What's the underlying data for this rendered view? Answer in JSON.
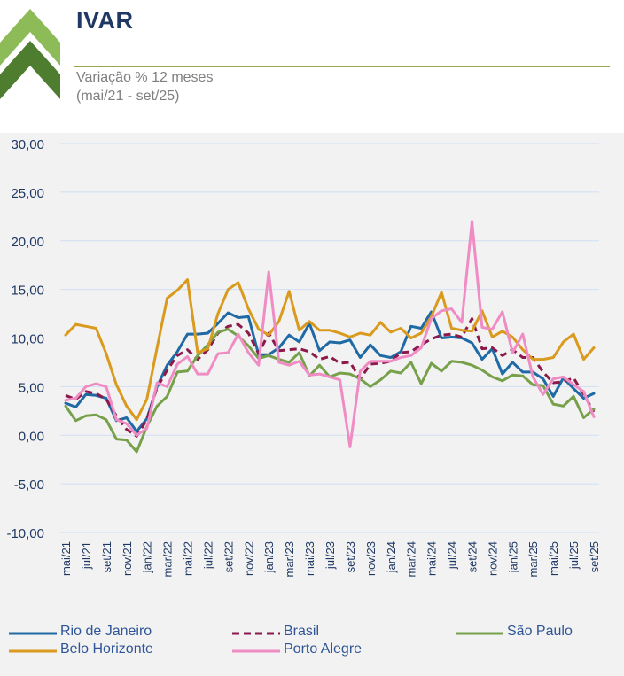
{
  "header": {
    "title": "IVAR",
    "subtitle_line1": "Variação % 12 meses",
    "subtitle_line2": "(mai/21 - set/25)"
  },
  "colors": {
    "rio": "#1f6aa5",
    "brasil": "#8b1a4a",
    "sao_paulo": "#77a04a",
    "belo_horizonte": "#d99a1e",
    "porto_alegre": "#f08cc4",
    "grid": "#cfe0f4",
    "logo_dark": "#4e7d30",
    "logo_light": "#8cbb57"
  },
  "chart_data": {
    "type": "line",
    "title": "IVAR",
    "subtitle": "Variação % 12 meses (mai/21 - set/25)",
    "ylim": [
      -10,
      30
    ],
    "yticks": [
      -10,
      -5,
      0,
      5,
      10,
      15,
      20,
      25,
      30
    ],
    "ytick_labels": [
      "-10,00",
      "-5,00",
      "0,00",
      "5,00",
      "10,00",
      "15,00",
      "20,00",
      "25,00",
      "30,00"
    ],
    "categories": [
      "mai/21",
      "jun/21",
      "jul/21",
      "ago/21",
      "set/21",
      "out/21",
      "nov/21",
      "dez/21",
      "jan/22",
      "fev/22",
      "mar/22",
      "abr/22",
      "mai/22",
      "jun/22",
      "jul/22",
      "ago/22",
      "set/22",
      "out/22",
      "nov/22",
      "dez/22",
      "jan/23",
      "fev/23",
      "mar/23",
      "abr/23",
      "mai/23",
      "jun/23",
      "jul/23",
      "ago/23",
      "set/23",
      "out/23",
      "nov/23",
      "dez/23",
      "jan/24",
      "fev/24",
      "mar/24",
      "abr/24",
      "mai/24",
      "jun/24",
      "jul/24",
      "ago/24",
      "set/24",
      "out/24",
      "nov/24",
      "dez/24",
      "jan/25",
      "fev/25",
      "mar/25",
      "abr/25",
      "mai/25",
      "jun/25",
      "jul/25",
      "ago/25",
      "set/25"
    ],
    "x_tick_labels": [
      "mai/21",
      "jul/21",
      "set/21",
      "nov/21",
      "jan/22",
      "mar/22",
      "mai/22",
      "jul/22",
      "set/22",
      "nov/22",
      "jan/23",
      "mar/23",
      "mai/23",
      "jul/23",
      "set/23",
      "nov/23",
      "jan/24",
      "mar/24",
      "mai/24",
      "jul/24",
      "set/24",
      "nov/24",
      "jan/25",
      "mar/25",
      "mai/25",
      "jul/25",
      "set/25"
    ],
    "series": [
      {
        "key": "rio",
        "name": "Rio de Janeiro",
        "dash": "solid",
        "values": [
          3.3,
          2.9,
          4.2,
          4.1,
          3.8,
          1.5,
          1.8,
          0.4,
          1.7,
          5.0,
          7.2,
          8.6,
          10.4,
          10.4,
          10.5,
          11.5,
          12.6,
          12.1,
          12.2,
          8.3,
          8.3,
          9.0,
          10.3,
          9.6,
          11.5,
          8.7,
          9.6,
          9.5,
          9.8,
          8.0,
          9.3,
          8.2,
          8.0,
          8.6,
          11.2,
          11.0,
          12.7,
          10.0,
          10.1,
          10.0,
          9.5,
          7.8,
          8.9,
          6.3,
          7.5,
          6.5,
          6.5,
          5.8,
          4.0,
          5.9,
          4.8,
          3.8,
          4.3
        ]
      },
      {
        "key": "brasil",
        "name": "Brasil",
        "dash": "dash",
        "values": [
          4.1,
          3.7,
          4.5,
          4.3,
          3.7,
          2.0,
          0.6,
          -0.1,
          1.6,
          4.9,
          6.7,
          8.2,
          8.8,
          7.8,
          8.8,
          10.5,
          11.2,
          11.4,
          10.5,
          8.4,
          10.5,
          8.7,
          8.8,
          8.9,
          8.6,
          7.8,
          8.1,
          7.4,
          7.5,
          5.8,
          7.3,
          7.4,
          7.6,
          8.5,
          8.6,
          9.3,
          9.9,
          10.3,
          10.4,
          10.1,
          12.0,
          8.9,
          9.0,
          8.2,
          8.8,
          8.0,
          8.0,
          6.5,
          5.4,
          5.5,
          5.9,
          4.2,
          2.4
        ]
      },
      {
        "key": "sao_paulo",
        "name": "São Paulo",
        "dash": "solid",
        "values": [
          3.0,
          1.5,
          2.0,
          2.1,
          1.6,
          -0.4,
          -0.5,
          -1.7,
          0.9,
          3.0,
          4.0,
          6.5,
          6.6,
          8.2,
          9.3,
          10.6,
          10.9,
          10.2,
          9.2,
          7.9,
          8.2,
          7.8,
          7.5,
          8.5,
          6.1,
          7.2,
          6.0,
          6.4,
          6.3,
          5.8,
          5.0,
          5.7,
          6.6,
          6.4,
          7.5,
          5.3,
          7.4,
          6.6,
          7.6,
          7.5,
          7.2,
          6.7,
          6.0,
          5.6,
          6.2,
          6.1,
          5.2,
          5.1,
          3.2,
          3.0,
          4.0,
          1.8,
          2.7
        ]
      },
      {
        "key": "belo_horizonte",
        "name": "Belo Horizonte",
        "dash": "solid",
        "values": [
          10.3,
          11.4,
          11.2,
          11.0,
          8.4,
          5.2,
          3.0,
          1.6,
          3.7,
          9.0,
          14.1,
          14.9,
          16.0,
          8.5,
          8.9,
          12.5,
          15.0,
          15.7,
          13.0,
          10.9,
          10.3,
          11.7,
          14.8,
          10.8,
          11.7,
          10.8,
          10.8,
          10.5,
          10.1,
          10.5,
          10.3,
          11.6,
          10.6,
          11.0,
          10.0,
          10.5,
          12.2,
          14.7,
          11.0,
          10.8,
          10.7,
          12.8,
          10.1,
          10.7,
          10.1,
          8.8,
          7.8,
          7.8,
          8.0,
          9.6,
          10.4,
          7.8,
          9.0
        ]
      },
      {
        "key": "porto_alegre",
        "name": "Porto Alegre",
        "dash": "solid",
        "values": [
          3.6,
          3.8,
          5.0,
          5.3,
          5.0,
          1.6,
          1.2,
          0.0,
          0.7,
          5.4,
          5.0,
          7.3,
          8.1,
          6.3,
          6.3,
          8.4,
          8.5,
          10.4,
          8.5,
          7.2,
          16.8,
          7.5,
          7.2,
          7.6,
          6.2,
          6.3,
          6.0,
          5.7,
          -1.2,
          6.6,
          7.6,
          7.6,
          7.6,
          8.0,
          8.2,
          9.0,
          12.0,
          12.8,
          13.0,
          11.6,
          22.0,
          11.1,
          10.9,
          12.7,
          8.5,
          10.4,
          6.0,
          4.2,
          5.8,
          6.0,
          5.2,
          4.5,
          1.9
        ]
      }
    ],
    "legend_position": "bottom",
    "grid": "horizontal"
  },
  "legend": {
    "rio": "Rio de Janeiro",
    "brasil": "Brasil",
    "sao_paulo": "São Paulo",
    "belo_horizonte": "Belo Horizonte",
    "porto_alegre": "Porto Alegre"
  }
}
